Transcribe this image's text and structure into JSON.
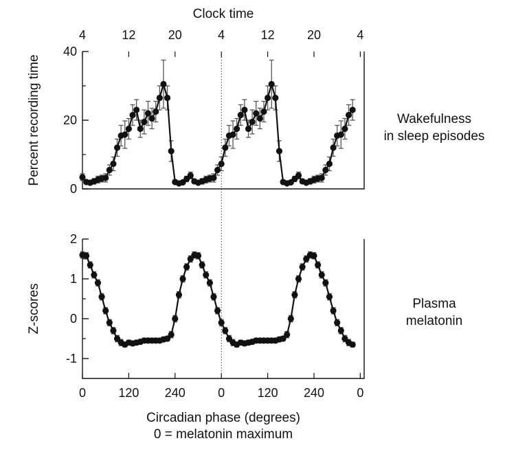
{
  "chart_data": [
    {
      "id": "wake",
      "type": "line",
      "panel": "top",
      "ylabel": "Percent recording time",
      "side_label": [
        "Wakefulness",
        "in sleep episodes"
      ],
      "top_axis_title": "Clock time",
      "top_ticks": {
        "positions_deg": [
          0,
          120,
          240,
          360,
          480,
          600,
          720
        ],
        "labels": [
          "4",
          "12",
          "20",
          "4",
          "12",
          "20",
          "4"
        ]
      },
      "ylim": [
        0,
        40
      ],
      "yticks": [
        0,
        20,
        40
      ],
      "ytick_labels": [
        "0",
        "20",
        "40"
      ],
      "x": [
        0,
        10,
        20,
        30,
        40,
        50,
        60,
        70,
        80,
        90,
        100,
        110,
        120,
        130,
        140,
        150,
        160,
        170,
        180,
        190,
        200,
        210,
        220,
        230,
        240,
        250,
        260,
        270,
        280,
        290,
        300,
        310,
        320,
        330,
        340,
        350,
        360,
        370,
        380,
        390,
        400,
        410,
        420,
        430,
        440,
        450,
        460,
        470,
        480,
        490,
        500,
        510,
        520,
        530,
        540,
        550,
        560,
        570,
        580,
        590,
        600,
        610,
        620,
        630,
        640,
        650,
        660,
        670,
        680,
        690,
        700
      ],
      "y": [
        3.4,
        2.0,
        1.8,
        2.2,
        2.7,
        3.0,
        3.2,
        5.5,
        7.3,
        12.0,
        15.5,
        15.8,
        17.5,
        21.5,
        23.0,
        17.5,
        19.5,
        22.0,
        20.5,
        22.5,
        26.5,
        30.5,
        26.5,
        11.0,
        2.0,
        1.6,
        1.9,
        2.9,
        3.9,
        2.2,
        1.8,
        2.2,
        2.7,
        3.0,
        3.2,
        5.5,
        7.3,
        12.0,
        15.5,
        15.8,
        17.5,
        21.5,
        23.0,
        17.5,
        19.5,
        22.0,
        20.5,
        22.5,
        26.5,
        30.5,
        26.5,
        11.0,
        2.0,
        1.6,
        1.9,
        2.9,
        3.9,
        2.2,
        1.8,
        2.2,
        2.7,
        3.0,
        3.2,
        5.5,
        7.3,
        12.0,
        15.5,
        15.8,
        17.5,
        21.5,
        23.0
      ],
      "err": [
        1.0,
        0.5,
        0.5,
        0.8,
        1.0,
        1.0,
        1.2,
        1.5,
        2.0,
        2.5,
        3.0,
        4.0,
        3.0,
        3.0,
        3.0,
        2.5,
        3.5,
        3.5,
        3.0,
        3.0,
        3.5,
        7.0,
        3.5,
        3.0,
        0.5,
        0.5,
        0.5,
        0.8,
        1.0,
        0.6,
        0.5,
        0.8,
        1.0,
        1.0,
        1.2,
        1.5,
        2.0,
        2.5,
        3.0,
        4.0,
        3.0,
        3.0,
        3.0,
        2.5,
        3.5,
        3.5,
        3.0,
        3.0,
        3.5,
        7.0,
        3.5,
        3.0,
        0.5,
        0.5,
        0.5,
        0.8,
        1.0,
        0.6,
        0.5,
        0.8,
        1.0,
        1.0,
        1.2,
        1.5,
        2.0,
        2.5,
        3.0,
        4.0,
        3.0,
        3.0,
        3.0
      ]
    },
    {
      "id": "mel",
      "type": "line",
      "panel": "bottom",
      "ylabel": "Z-scores",
      "side_label": [
        "Plasma",
        "melatonin"
      ],
      "xlabel": [
        "Circadian phase (degrees)",
        "0 = melatonin maximum"
      ],
      "xticks": {
        "positions_deg": [
          0,
          120,
          240,
          360,
          480,
          600,
          720
        ],
        "labels": [
          "0",
          "120",
          "240",
          "0",
          "120",
          "240",
          "0"
        ]
      },
      "ylim": [
        -1.5,
        2
      ],
      "yticks": [
        -1,
        0,
        1,
        2
      ],
      "ytick_labels": [
        "-1",
        "0",
        "1",
        "2"
      ],
      "x": [
        0,
        10,
        20,
        30,
        40,
        50,
        60,
        70,
        80,
        90,
        100,
        110,
        120,
        130,
        140,
        150,
        160,
        170,
        180,
        190,
        200,
        210,
        220,
        230,
        240,
        250,
        260,
        270,
        280,
        290,
        300,
        310,
        320,
        330,
        340,
        350,
        360,
        370,
        380,
        390,
        400,
        410,
        420,
        430,
        440,
        450,
        460,
        470,
        480,
        490,
        500,
        510,
        520,
        530,
        540,
        550,
        560,
        570,
        580,
        590,
        600,
        610,
        620,
        630,
        640,
        650,
        660,
        670,
        680,
        690,
        700
      ],
      "y": [
        1.6,
        1.58,
        1.35,
        1.1,
        0.9,
        0.55,
        0.2,
        -0.1,
        -0.3,
        -0.5,
        -0.6,
        -0.65,
        -0.6,
        -0.62,
        -0.6,
        -0.58,
        -0.55,
        -0.55,
        -0.55,
        -0.55,
        -0.55,
        -0.52,
        -0.5,
        -0.4,
        0.0,
        0.6,
        1.0,
        1.3,
        1.5,
        1.6,
        1.58,
        1.35,
        1.1,
        0.9,
        0.55,
        0.2,
        -0.1,
        -0.3,
        -0.5,
        -0.6,
        -0.65,
        -0.6,
        -0.62,
        -0.6,
        -0.58,
        -0.55,
        -0.55,
        -0.55,
        -0.55,
        -0.55,
        -0.55,
        -0.52,
        -0.5,
        -0.4,
        0.0,
        0.6,
        1.0,
        1.3,
        1.5,
        1.6,
        1.58,
        1.35,
        1.1,
        0.9,
        0.55,
        0.2,
        -0.1,
        -0.3,
        -0.5,
        -0.6,
        -0.65
      ],
      "err": [
        0.08,
        0.08,
        0.08,
        0.08,
        0.08,
        0.08,
        0.08,
        0.08,
        0.08,
        0.08,
        0.08,
        0.06,
        0.06,
        0.06,
        0.06,
        0.06,
        0.06,
        0.06,
        0.06,
        0.06,
        0.06,
        0.06,
        0.06,
        0.08,
        0.08,
        0.08,
        0.08,
        0.08,
        0.08,
        0.08,
        0.08,
        0.08,
        0.08,
        0.08,
        0.08,
        0.08,
        0.08,
        0.08,
        0.08,
        0.08,
        0.06,
        0.06,
        0.06,
        0.06,
        0.06,
        0.06,
        0.06,
        0.06,
        0.06,
        0.06,
        0.06,
        0.06,
        0.06,
        0.08,
        0.08,
        0.08,
        0.08,
        0.08,
        0.08,
        0.08,
        0.08,
        0.08,
        0.08,
        0.08,
        0.08,
        0.08,
        0.08,
        0.08,
        0.08,
        0.08,
        0.06
      ]
    }
  ]
}
